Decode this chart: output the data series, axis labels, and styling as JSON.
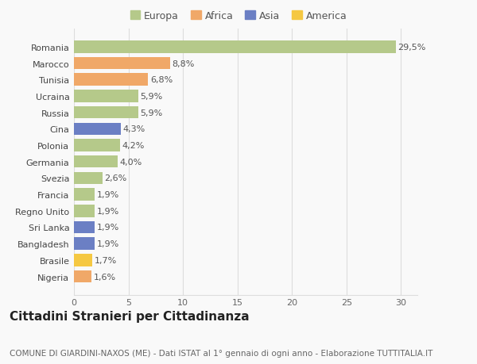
{
  "countries": [
    "Nigeria",
    "Brasile",
    "Bangladesh",
    "Sri Lanka",
    "Regno Unito",
    "Francia",
    "Svezia",
    "Germania",
    "Polonia",
    "Cina",
    "Russia",
    "Ucraina",
    "Tunisia",
    "Marocco",
    "Romania"
  ],
  "values": [
    1.6,
    1.7,
    1.9,
    1.9,
    1.9,
    1.9,
    2.6,
    4.0,
    4.2,
    4.3,
    5.9,
    5.9,
    6.8,
    8.8,
    29.5
  ],
  "labels": [
    "1,6%",
    "1,7%",
    "1,9%",
    "1,9%",
    "1,9%",
    "1,9%",
    "2,6%",
    "4,0%",
    "4,2%",
    "4,3%",
    "5,9%",
    "5,9%",
    "6,8%",
    "8,8%",
    "29,5%"
  ],
  "colors": [
    "#f0a868",
    "#f5c842",
    "#6b7fc4",
    "#6b7fc4",
    "#b5c98a",
    "#b5c98a",
    "#b5c98a",
    "#b5c98a",
    "#b5c98a",
    "#6b7fc4",
    "#b5c98a",
    "#b5c98a",
    "#f0a868",
    "#f0a868",
    "#b5c98a"
  ],
  "legend_labels": [
    "Europa",
    "Africa",
    "Asia",
    "America"
  ],
  "legend_colors": [
    "#b5c98a",
    "#f0a868",
    "#6b7fc4",
    "#f5c842"
  ],
  "title": "Cittadini Stranieri per Cittadinanza",
  "subtitle": "COMUNE DI GIARDINI-NAXOS (ME) - Dati ISTAT al 1° gennaio di ogni anno - Elaborazione TUTTITALIA.IT",
  "xlim": [
    0,
    31.5
  ],
  "xticks": [
    0,
    5,
    10,
    15,
    20,
    25,
    30
  ],
  "bg_color": "#f9f9f9",
  "bar_height": 0.75,
  "grid_color": "#dddddd",
  "title_fontsize": 11,
  "subtitle_fontsize": 7.5,
  "label_fontsize": 8,
  "tick_fontsize": 8,
  "legend_fontsize": 9
}
